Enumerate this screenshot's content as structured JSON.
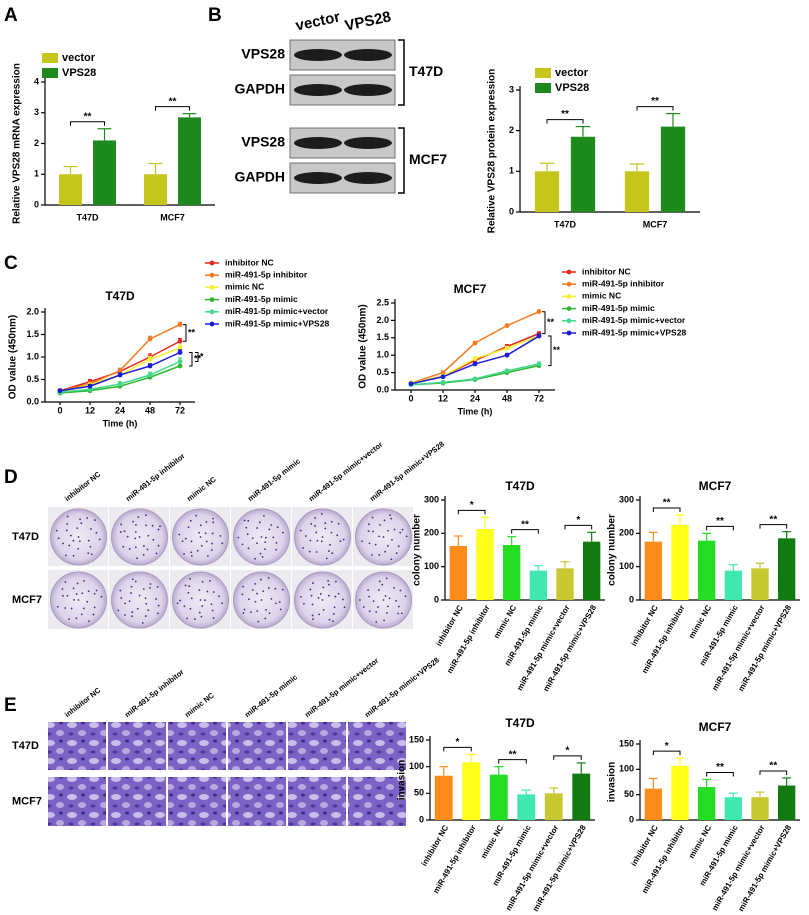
{
  "panels": [
    "A",
    "B",
    "C",
    "D",
    "E"
  ],
  "blot": {
    "columns": [
      "vector",
      "VPS28"
    ],
    "groups": [
      {
        "name": "T47D",
        "rows": [
          "VPS28",
          "GAPDH"
        ]
      },
      {
        "name": "MCF7",
        "rows": [
          "VPS28",
          "GAPDH"
        ]
      }
    ]
  },
  "photos": [
    {
      "columns": [
        "inhibitor NC",
        "miR-491-5p inhibitor",
        "mimic NC",
        "miR-491-5p mimic",
        "miR-491-5p mimic+vector",
        "miR-491-5p mimic+VPS28"
      ],
      "rows": [
        "T47D",
        "MCF7"
      ]
    },
    {
      "columns": [
        "inhibitor NC",
        "miR-491-5p inhibitor",
        "mimic NC",
        "miR-491-5p mimic",
        "miR-491-5p mimic+vector",
        "miR-491-5p mimic+VPS28"
      ],
      "rows": [
        "T47D",
        "MCF7"
      ]
    }
  ],
  "chart_data": [
    {
      "type": "bar",
      "ylabel": "Relative VPS28 mRNA expression",
      "categories": [
        "T47D",
        "MCF7"
      ],
      "series": [
        {
          "name": "vector",
          "color": "#c5c51c",
          "values": [
            1,
            1
          ],
          "errors": [
            0.25,
            0.35
          ]
        },
        {
          "name": "VPS28",
          "color": "#1e8a1e",
          "values": [
            2.1,
            2.85
          ],
          "errors": [
            0.38,
            0.12
          ]
        }
      ],
      "ylim": [
        0,
        4
      ],
      "yticks": [
        0,
        1,
        2,
        3,
        4
      ],
      "annotations": [
        "**",
        "**"
      ]
    },
    {
      "type": "bar",
      "ylabel": "Relative VPS28 protein expression",
      "categories": [
        "T47D",
        "MCF7"
      ],
      "series": [
        {
          "name": "vector",
          "color": "#c5c51c",
          "values": [
            1,
            1
          ],
          "errors": [
            0.2,
            0.18
          ]
        },
        {
          "name": "VPS28",
          "color": "#1e8a1e",
          "values": [
            1.85,
            2.1
          ],
          "errors": [
            0.25,
            0.32
          ]
        }
      ],
      "ylim": [
        0,
        3
      ],
      "yticks": [
        0,
        1,
        2,
        3
      ],
      "annotations": [
        "**",
        "**"
      ]
    },
    {
      "type": "line",
      "title": "T47D",
      "xlabel": "Time (h)",
      "ylabel": "OD value (450nm)",
      "categories": [
        "0",
        "12",
        "24",
        "48",
        "72"
      ],
      "series": [
        {
          "name": "inhibitor NC",
          "color": "#e8251e",
          "values": [
            0.25,
            0.45,
            0.68,
            1.0,
            1.35
          ],
          "errors": [
            0.04,
            0.05,
            0.05,
            0.07,
            0.06
          ]
        },
        {
          "name": "miR-491-5p inhibitor",
          "color": "#f47a20",
          "values": [
            0.25,
            0.4,
            0.7,
            1.4,
            1.72
          ],
          "errors": [
            0.04,
            0.04,
            0.05,
            0.06,
            0.05
          ]
        },
        {
          "name": "mimic NC",
          "color": "#f2f230",
          "values": [
            0.22,
            0.38,
            0.6,
            0.95,
            1.2
          ],
          "errors": [
            0.03,
            0.04,
            0.05,
            0.06,
            0.07
          ]
        },
        {
          "name": "miR-491-5p mimic",
          "color": "#2fb52f",
          "values": [
            0.2,
            0.25,
            0.35,
            0.55,
            0.8
          ],
          "errors": [
            0.03,
            0.03,
            0.05,
            0.07,
            0.08
          ]
        },
        {
          "name": "miR-491-5p mimic+vector",
          "color": "#3fd98e",
          "values": [
            0.22,
            0.28,
            0.4,
            0.6,
            0.9
          ],
          "errors": [
            0.03,
            0.03,
            0.05,
            0.06,
            0.08
          ]
        },
        {
          "name": "miR-491-5p mimic+VPS28",
          "color": "#1c1cd6",
          "values": [
            0.25,
            0.35,
            0.6,
            0.8,
            1.1
          ],
          "errors": [
            0.03,
            0.04,
            0.05,
            0.05,
            0.06
          ]
        }
      ],
      "ylim": [
        0,
        2.0
      ],
      "yticks": [
        {
          "value": 0,
          "label": "0.0"
        },
        0.5,
        {
          "value": 1.0,
          "label": "1.0"
        },
        1.5,
        {
          "value": 2.0,
          "label": "2.0"
        }
      ],
      "annotations": [
        "**",
        "**",
        "*"
      ]
    },
    {
      "type": "line",
      "title": "MCF7",
      "xlabel": "Time (h)",
      "ylabel": "OD value (450nm)",
      "categories": [
        "0",
        "12",
        "24",
        "48",
        "72"
      ],
      "series": [
        {
          "name": "inhibitor NC",
          "color": "#e8251e",
          "values": [
            0.2,
            0.4,
            0.85,
            1.25,
            1.62
          ],
          "errors": [
            0.03,
            0.04,
            0.05,
            0.05,
            0.05
          ]
        },
        {
          "name": "miR-491-5p inhibitor",
          "color": "#f47a20",
          "values": [
            0.2,
            0.5,
            1.35,
            1.85,
            2.25
          ],
          "errors": [
            0.03,
            0.04,
            0.04,
            0.04,
            0.05
          ]
        },
        {
          "name": "mimic NC",
          "color": "#f2f230",
          "values": [
            0.2,
            0.4,
            0.9,
            1.2,
            1.55
          ],
          "errors": [
            0.03,
            0.04,
            0.05,
            0.05,
            0.06
          ]
        },
        {
          "name": "miR-491-5p mimic",
          "color": "#2fb52f",
          "values": [
            0.15,
            0.2,
            0.3,
            0.5,
            0.7
          ],
          "errors": [
            0.02,
            0.03,
            0.03,
            0.04,
            0.05
          ]
        },
        {
          "name": "miR-491-5p mimic+vector",
          "color": "#3fd98e",
          "values": [
            0.15,
            0.22,
            0.32,
            0.55,
            0.75
          ],
          "errors": [
            0.02,
            0.03,
            0.03,
            0.04,
            0.05
          ]
        },
        {
          "name": "miR-491-5p mimic+VPS28",
          "color": "#1c1cd6",
          "values": [
            0.18,
            0.38,
            0.75,
            1.0,
            1.55
          ],
          "errors": [
            0.03,
            0.03,
            0.04,
            0.05,
            0.06
          ]
        }
      ],
      "ylim": [
        0,
        2.5
      ],
      "yticks": [
        {
          "value": 0,
          "label": "0.0"
        },
        0.5,
        {
          "value": 1.0,
          "label": "1.0"
        },
        1.5,
        {
          "value": 2.0,
          "label": "2.0"
        },
        2.5
      ],
      "annotations": [
        "**",
        "**"
      ]
    },
    {
      "type": "bar",
      "title": "T47D",
      "ylabel": "colony number",
      "categories": [
        "inhibitor NC",
        "miR-491-5p inhibitor",
        "mimic NC",
        "miR-491-5p mimic",
        "miR-491-5p mimic+vector",
        "miR-491-5p mimic+VPS28"
      ],
      "values": [
        162,
        213,
        165,
        88,
        95,
        175
      ],
      "errors": [
        30,
        35,
        25,
        15,
        20,
        28
      ],
      "colors": [
        "#ff8c1a",
        "#ffff1a",
        "#22dd22",
        "#40e8b0",
        "#c8c832",
        "#117a11"
      ],
      "ylim": [
        0,
        300
      ],
      "yticks": [
        0,
        100,
        200,
        300
      ],
      "annotations": [
        "*",
        "**",
        "*"
      ]
    },
    {
      "type": "bar",
      "title": "MCF7",
      "ylabel": "colony number",
      "categories": [
        "inhibitor NC",
        "miR-491-5p inhibitor",
        "mimic NC",
        "miR-491-5p mimic",
        "miR-491-5p mimic+vector",
        "miR-491-5p mimic+VPS28"
      ],
      "values": [
        175,
        225,
        178,
        88,
        95,
        185
      ],
      "errors": [
        28,
        30,
        22,
        18,
        15,
        20
      ],
      "colors": [
        "#ff8c1a",
        "#ffff1a",
        "#22dd22",
        "#40e8b0",
        "#c8c832",
        "#117a11"
      ],
      "ylim": [
        0,
        300
      ],
      "yticks": [
        0,
        100,
        200,
        300
      ],
      "annotations": [
        "**",
        "**",
        "**"
      ]
    },
    {
      "type": "bar",
      "title": "T47D",
      "ylabel": "invasion",
      "categories": [
        "inhibitor NC",
        "miR-491-5p inhibitor",
        "mimic NC",
        "miR-491-5p mimic",
        "miR-491-5p mimic+vector",
        "miR-491-5p mimic+VPS28"
      ],
      "values": [
        83,
        108,
        85,
        48,
        50,
        87
      ],
      "errors": [
        17,
        15,
        15,
        8,
        10,
        20
      ],
      "colors": [
        "#ff8c1a",
        "#ffff1a",
        "#22dd22",
        "#40e8b0",
        "#c8c832",
        "#117a11"
      ],
      "ylim": [
        0,
        150
      ],
      "yticks": [
        0,
        50,
        100,
        150
      ],
      "annotations": [
        "*",
        "**",
        "*"
      ]
    },
    {
      "type": "bar",
      "title": "MCF7",
      "ylabel": "invasion",
      "categories": [
        "inhibitor NC",
        "miR-491-5p inhibitor",
        "mimic NC",
        "miR-491-5p mimic",
        "miR-491-5p mimic+vector",
        "miR-491-5p mimic+VPS28"
      ],
      "values": [
        62,
        107,
        65,
        45,
        45,
        68
      ],
      "errors": [
        20,
        15,
        15,
        8,
        10,
        15
      ],
      "colors": [
        "#ff8c1a",
        "#ffff1a",
        "#22dd22",
        "#40e8b0",
        "#c8c832",
        "#117a11"
      ],
      "ylim": [
        0,
        150
      ],
      "yticks": [
        0,
        50,
        100,
        150
      ],
      "annotations": [
        "*",
        "**",
        "**"
      ]
    }
  ]
}
